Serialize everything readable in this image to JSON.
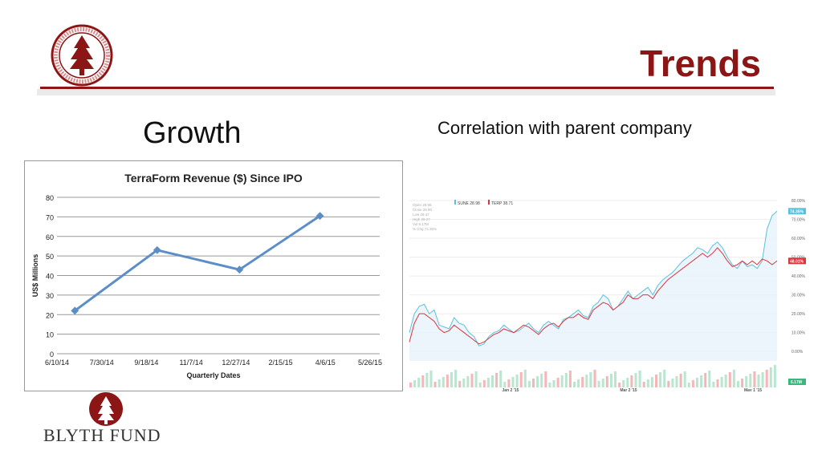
{
  "slide": {
    "title": "Trends",
    "left_heading": "Growth",
    "right_heading": "Correlation with parent company",
    "footer_logo_text": "BLYTH FUND",
    "accent_color": "#8c1515"
  },
  "chart_data": [
    {
      "type": "line",
      "title": "TerraForm Revenue ($) Since IPO",
      "xlabel": "Quarterly Dates",
      "ylabel": "US$ Millions",
      "x_ticks": [
        "6/10/14",
        "7/30/14",
        "9/18/14",
        "11/7/14",
        "12/27/14",
        "2/15/15",
        "4/6/15",
        "5/26/15"
      ],
      "y_ticks": [
        0,
        10,
        20,
        30,
        40,
        50,
        60,
        70,
        80
      ],
      "ylim": [
        0,
        80
      ],
      "grid": true,
      "series": [
        {
          "points": [
            {
              "x": "2014-06-30",
              "y": 22
            },
            {
              "x": "2014-09-30",
              "y": 53
            },
            {
              "x": "2014-12-31",
              "y": 43
            },
            {
              "x": "2015-03-31",
              "y": 70.5
            }
          ],
          "color": "#5b8ec7"
        }
      ]
    },
    {
      "type": "line",
      "legend": [
        "SUNE 28.98",
        "TERP 38.71"
      ],
      "readout": [
        "Open 28.56",
        "Close 28.90",
        "Low 28.47",
        "High 29.27",
        "Vol 6.17M",
        "% Chg 74.35%"
      ],
      "x_ticks": [
        "Jan 2 '15",
        "Mar 2 '15",
        "May 1 '15"
      ],
      "y_ticks": [
        "80.00%",
        "70.00%",
        "60.00%",
        "50.00%",
        "40.00%",
        "30.00%",
        "20.00%",
        "10.00%",
        "0.00%"
      ],
      "ylim": [
        -5,
        80
      ],
      "end_labels": [
        "74.35%",
        "48.01%"
      ],
      "volume_label": "6.17M",
      "series": [
        {
          "name": "SUNE",
          "color": "#5bc0de",
          "values": [
            10,
            20,
            24,
            25,
            20,
            22,
            14,
            13,
            12,
            18,
            15,
            14,
            10,
            8,
            3,
            4,
            8,
            10,
            11,
            14,
            12,
            10,
            11,
            13,
            15,
            12,
            10,
            14,
            16,
            14,
            12,
            17,
            18,
            20,
            22,
            19,
            18,
            24,
            26,
            30,
            28,
            22,
            24,
            28,
            32,
            28,
            30,
            32,
            34,
            30,
            35,
            38,
            40,
            42,
            45,
            48,
            50,
            52,
            55,
            54,
            52,
            56,
            58,
            55,
            50,
            46,
            44,
            48,
            45,
            46,
            44,
            48,
            65,
            72,
            74.35
          ]
        },
        {
          "name": "TERP",
          "color": "#d9363e",
          "values": [
            5,
            15,
            20,
            20,
            18,
            16,
            12,
            10,
            11,
            14,
            12,
            10,
            8,
            6,
            4,
            5,
            7,
            9,
            10,
            12,
            11,
            10,
            12,
            14,
            13,
            11,
            9,
            12,
            14,
            15,
            13,
            16,
            18,
            18,
            20,
            18,
            17,
            22,
            24,
            26,
            25,
            22,
            24,
            26,
            30,
            28,
            28,
            30,
            30,
            28,
            32,
            35,
            38,
            40,
            42,
            44,
            46,
            48,
            50,
            52,
            50,
            52,
            55,
            52,
            48,
            45,
            46,
            48,
            46,
            48,
            46,
            49,
            48,
            46,
            48.01
          ]
        }
      ]
    }
  ]
}
